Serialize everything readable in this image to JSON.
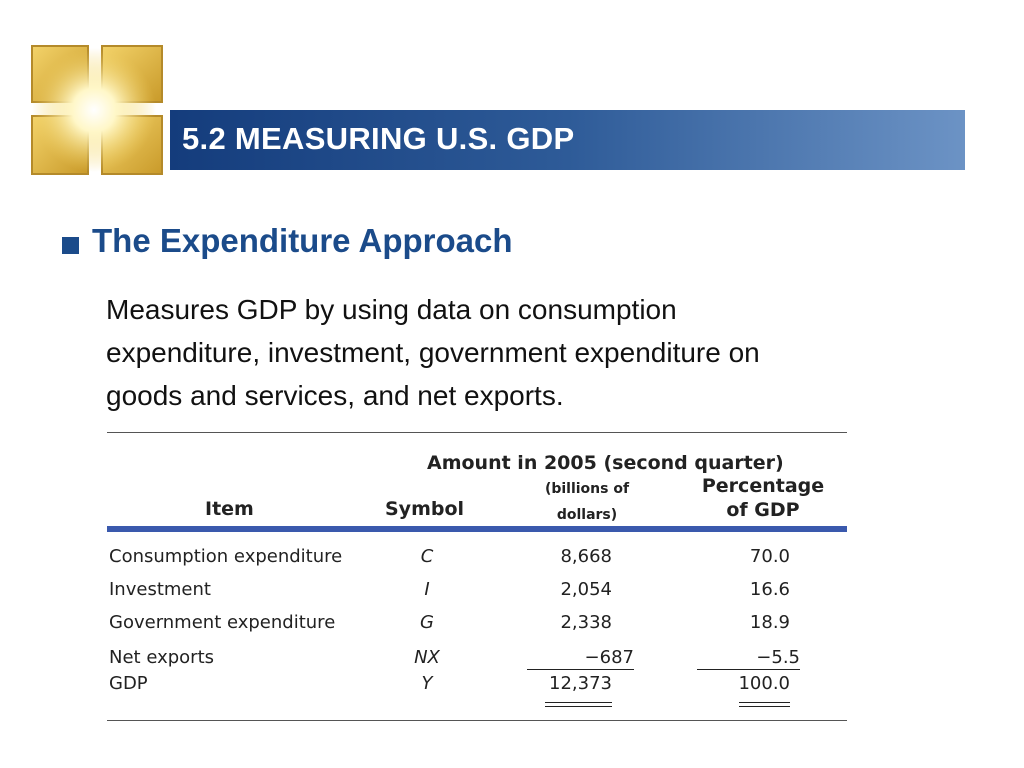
{
  "slide": {
    "title": "5.2 MEASURING U.S. GDP",
    "bullet": "The Expenditure Approach",
    "body_lines": [
      "Measures GDP by using data on consumption",
      "expenditure, investment, government expenditure on",
      "goods and services, and net exports."
    ]
  },
  "table": {
    "group_header": "Amount in 2005 (second quarter)",
    "columns": {
      "item": "Item",
      "symbol": "Symbol",
      "amount_line1": "(billions of",
      "amount_line2": "dollars)",
      "pct_line1": "Percentage",
      "pct_line2": "of GDP"
    },
    "rows": [
      {
        "item": "Consumption expenditure",
        "symbol": "C",
        "amount": "8,668",
        "percent": "70.0"
      },
      {
        "item": "Investment",
        "symbol": "I",
        "amount": "2,054",
        "percent": "16.6"
      },
      {
        "item": "Government expenditure",
        "symbol": "G",
        "amount": "2,338",
        "percent": "18.9"
      },
      {
        "item": "Net exports",
        "symbol": "NX",
        "amount": "−687",
        "percent": "−5.5"
      },
      {
        "item": "GDP",
        "symbol": "Y",
        "amount": "12,373",
        "percent": "100.0"
      }
    ]
  },
  "colors": {
    "title_bar_dark": "#143c7c",
    "title_bar_light": "#6c93c5",
    "heading_blue": "#1b4b8a",
    "table_rule_blue": "#3a59ad"
  }
}
